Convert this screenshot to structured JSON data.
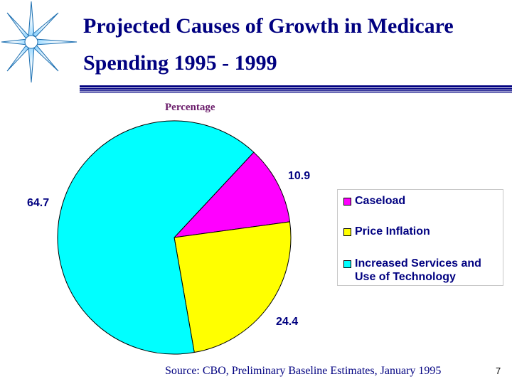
{
  "slide": {
    "title_line1": "Projected Causes of Growth in Medicare",
    "title_line2": "Spending 1995 - 1999",
    "source": "Source:  CBO, Preliminary Baseline Estimates, January 1995",
    "page_number": "7",
    "title_color": "#000080",
    "accent_color": "#00c0ff"
  },
  "chart_data": {
    "type": "pie",
    "title": "",
    "ylabel": "Percentage",
    "series": [
      {
        "name": "Percentage",
        "labels": [
          "Caseload",
          "Price Inflation",
          "Increased Services and Use of Technology"
        ],
        "values": [
          10.9,
          24.4,
          64.7
        ],
        "value_labels": [
          "10.9",
          "24.4",
          "64.7"
        ],
        "colors": [
          "#ff00ff",
          "#ffff00",
          "#00ffff"
        ]
      }
    ],
    "legend": {
      "placement": "right",
      "entries": [
        "Caseload",
        "Price Inflation",
        "Increased Services and Use of Technology"
      ],
      "entry_lines": [
        [
          "Caseload"
        ],
        [
          "Price Inflation"
        ],
        [
          "Increased Services and",
          "Use of Technology"
        ]
      ]
    }
  }
}
